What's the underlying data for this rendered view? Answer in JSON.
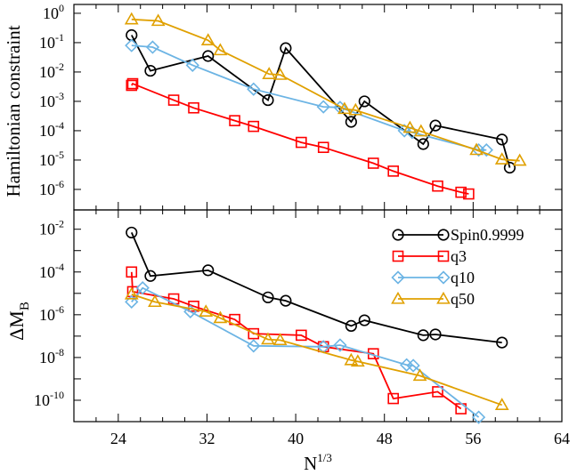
{
  "chart_data": [
    {
      "type": "line",
      "id": "top",
      "ylabel": "Hamiltonian constraint",
      "xlabel": "",
      "xlim": [
        20,
        64
      ],
      "ylim": [
        2e-07,
        2
      ],
      "yscale": "log",
      "x_ticks": [
        24,
        32,
        40,
        48,
        56,
        64
      ],
      "y_ticks": [
        {
          "value": 1,
          "base": "10",
          "exp": "0"
        },
        {
          "value": 0.1,
          "base": "10",
          "exp": "-1"
        },
        {
          "value": 0.01,
          "base": "10",
          "exp": "-2"
        },
        {
          "value": 0.001,
          "base": "10",
          "exp": "-3"
        },
        {
          "value": 0.0001,
          "base": "10",
          "exp": "-4"
        },
        {
          "value": 1e-05,
          "base": "10",
          "exp": "-5"
        },
        {
          "value": 1e-06,
          "base": "10",
          "exp": "-6"
        }
      ],
      "series": [
        {
          "name": "Spin0.9999",
          "key": "spin",
          "x": [
            25.2,
            26.9,
            32.1,
            37.5,
            39.1,
            45.0,
            46.2,
            51.5,
            52.6,
            58.6,
            59.3
          ],
          "y": [
            0.18,
            0.011,
            0.035,
            0.0011,
            0.065,
            0.0002,
            0.001,
            3.5e-05,
            0.00015,
            5e-05,
            5.5e-06
          ]
        },
        {
          "name": "q3",
          "key": "q3",
          "x": [
            25.2,
            25.3,
            29.0,
            30.8,
            34.5,
            36.2,
            40.5,
            42.5,
            47.0,
            48.8,
            52.8,
            54.9,
            55.6
          ],
          "y": [
            0.0035,
            0.004,
            0.0011,
            0.0006,
            0.00022,
            0.00014,
            4e-05,
            2.7e-05,
            7.8e-06,
            4.2e-06,
            1.3e-06,
            8e-07,
            7e-07
          ]
        },
        {
          "name": "q10",
          "key": "q10",
          "x": [
            25.2,
            27.1,
            30.7,
            36.2,
            42.5,
            44.0,
            49.8,
            50.5,
            56.5,
            57.2
          ],
          "y": [
            0.08,
            0.07,
            0.017,
            0.0026,
            0.00065,
            0.00062,
            0.0001,
            8.8e-05,
            2.2e-05,
            2.2e-05
          ]
        },
        {
          "name": "q50",
          "key": "q50",
          "x": [
            25.2,
            27.6,
            32.1,
            33.2,
            37.6,
            38.6,
            44.4,
            45.4,
            50.3,
            51.3,
            56.3,
            58.6,
            60.2
          ],
          "y": [
            0.62,
            0.55,
            0.12,
            0.055,
            0.0085,
            0.008,
            0.00055,
            0.0005,
            0.000125,
            9.5e-05,
            2.2e-05,
            1.05e-05,
            9.5e-06
          ]
        }
      ]
    },
    {
      "type": "line",
      "id": "bottom",
      "ylabel": "ΔM",
      "ylabel_sub": "B",
      "xlabel": "N",
      "xlabel_sup": "1/3",
      "xlim": [
        20,
        64
      ],
      "ylim": [
        1e-11,
        0.08
      ],
      "yscale": "log",
      "x_ticks": [
        24,
        32,
        40,
        48,
        56,
        64
      ],
      "y_ticks": [
        {
          "value": 0.01,
          "base": "10",
          "exp": "-2"
        },
        {
          "value": 0.0001,
          "base": "10",
          "exp": "-4"
        },
        {
          "value": 1e-06,
          "base": "10",
          "exp": "-6"
        },
        {
          "value": 1e-08,
          "base": "10",
          "exp": "-8"
        },
        {
          "value": 1e-10,
          "base": "10",
          "exp": "-10"
        }
      ],
      "series": [
        {
          "name": "Spin0.9999",
          "key": "spin",
          "x": [
            25.2,
            26.9,
            32.1,
            37.5,
            39.1,
            45.0,
            46.2,
            51.5,
            52.6,
            58.6
          ],
          "y": [
            0.007,
            6.5e-05,
            0.00012,
            6.5e-06,
            4.5e-06,
            3e-07,
            5.5e-07,
            1.1e-07,
            1.2e-07,
            5e-08
          ]
        },
        {
          "name": "q3",
          "key": "q3",
          "x": [
            25.2,
            25.3,
            29.0,
            30.8,
            34.5,
            36.2,
            40.5,
            42.5,
            47.0,
            48.8,
            52.8,
            54.9
          ],
          "y": [
            0.0001,
            1.2e-05,
            5.5e-06,
            2.5e-06,
            6e-07,
            1.3e-07,
            1.1e-07,
            3.2e-08,
            1.5e-08,
            1.2e-10,
            2.5e-10,
            4e-11
          ]
        },
        {
          "name": "q10",
          "key": "q10",
          "x": [
            25.2,
            26.2,
            30.5,
            36.2,
            42.5,
            44.0,
            50.0,
            50.6,
            56.5
          ],
          "y": [
            4e-06,
            1.8e-05,
            1.4e-06,
            3.5e-08,
            3.2e-08,
            3.8e-08,
            4.5e-09,
            4.2e-09,
            1.6e-11
          ]
        },
        {
          "name": "q50",
          "key": "q50",
          "x": [
            25.2,
            27.3,
            31.9,
            33.2,
            37.5,
            38.6,
            45.0,
            45.6,
            51.2,
            58.6
          ],
          "y": [
            9e-06,
            4e-06,
            1.4e-06,
            7e-07,
            7e-08,
            6.5e-08,
            7.5e-09,
            6.5e-09,
            1.4e-09,
            6e-11
          ]
        }
      ]
    }
  ],
  "legend": [
    {
      "key": "spin",
      "label": "Spin0.9999"
    },
    {
      "key": "q3",
      "label": "q3"
    },
    {
      "key": "q10",
      "label": "q10"
    },
    {
      "key": "q50",
      "label": "q50"
    }
  ],
  "styles": {
    "spin": {
      "color": "#000000",
      "marker": "circle"
    },
    "q3": {
      "color": "#ff0000",
      "marker": "square"
    },
    "q10": {
      "color": "#6cb4e4",
      "marker": "diamond"
    },
    "q50": {
      "color": "#e0a000",
      "marker": "triangle"
    }
  }
}
